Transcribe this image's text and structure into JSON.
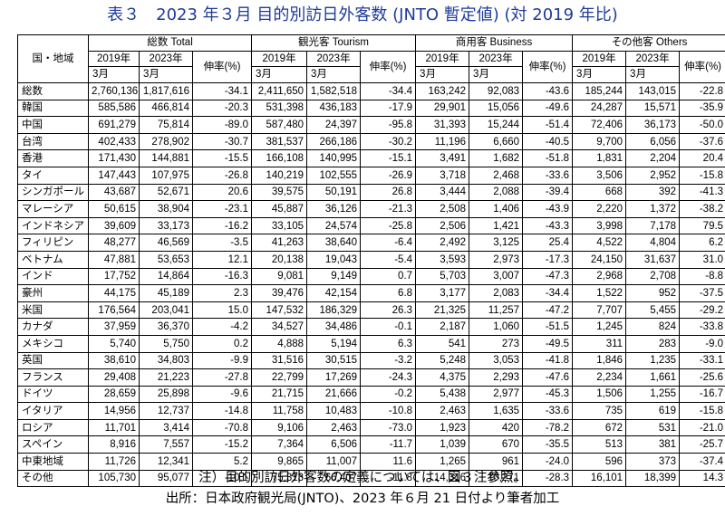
{
  "title": "表３　2023 年３月 目的別訪日外客数 (JNTO 暫定値) (対 2019 年比)",
  "header": {
    "country_label": "国・地域",
    "groups": [
      "総数 Total",
      "観光客 Tourism",
      "商用客 Business",
      "その他客 Others"
    ],
    "year_2019": "2019年",
    "year_2023": "2023年",
    "month": "3月",
    "growth": "伸率(%)"
  },
  "rows": [
    [
      "総数",
      "2,760,136",
      "1,817,616",
      "-34.1",
      "2,411,650",
      "1,582,518",
      "-34.4",
      "163,242",
      "92,083",
      "-43.6",
      "185,244",
      "143,015",
      "-22.8"
    ],
    [
      "韓国",
      "585,586",
      "466,814",
      "-20.3",
      "531,398",
      "436,183",
      "-17.9",
      "29,901",
      "15,056",
      "-49.6",
      "24,287",
      "15,571",
      "-35.9"
    ],
    [
      "中国",
      "691,279",
      "75,814",
      "-89.0",
      "587,480",
      "24,397",
      "-95.8",
      "31,393",
      "15,244",
      "-51.4",
      "72,406",
      "36,173",
      "-50.0"
    ],
    [
      "台湾",
      "402,433",
      "278,902",
      "-30.7",
      "381,537",
      "266,186",
      "-30.2",
      "11,196",
      "6,660",
      "-40.5",
      "9,700",
      "6,056",
      "-37.6"
    ],
    [
      "香港",
      "171,430",
      "144,881",
      "-15.5",
      "166,108",
      "140,995",
      "-15.1",
      "3,491",
      "1,682",
      "-51.8",
      "1,831",
      "2,204",
      "20.4"
    ],
    [
      "タイ",
      "147,443",
      "107,975",
      "-26.8",
      "140,219",
      "102,555",
      "-26.9",
      "3,718",
      "2,468",
      "-33.6",
      "3,506",
      "2,952",
      "-15.8"
    ],
    [
      "シンガポール",
      "43,687",
      "52,671",
      "20.6",
      "39,575",
      "50,191",
      "26.8",
      "3,444",
      "2,088",
      "-39.4",
      "668",
      "392",
      "-41.3"
    ],
    [
      "マレーシア",
      "50,615",
      "38,904",
      "-23.1",
      "45,887",
      "36,126",
      "-21.3",
      "2,508",
      "1,406",
      "-43.9",
      "2,220",
      "1,372",
      "-38.2"
    ],
    [
      "インドネシア",
      "39,609",
      "33,173",
      "-16.2",
      "33,105",
      "24,574",
      "-25.8",
      "2,506",
      "1,421",
      "-43.3",
      "3,998",
      "7,178",
      "79.5"
    ],
    [
      "フィリピン",
      "48,277",
      "46,569",
      "-3.5",
      "41,263",
      "38,640",
      "-6.4",
      "2,492",
      "3,125",
      "25.4",
      "4,522",
      "4,804",
      "6.2"
    ],
    [
      "ベトナム",
      "47,881",
      "53,653",
      "12.1",
      "20,138",
      "19,043",
      "-5.4",
      "3,593",
      "2,973",
      "-17.3",
      "24,150",
      "31,637",
      "31.0"
    ],
    [
      "インド",
      "17,752",
      "14,864",
      "-16.3",
      "9,081",
      "9,149",
      "0.7",
      "5,703",
      "3,007",
      "-47.3",
      "2,968",
      "2,708",
      "-8.8"
    ],
    [
      "豪州",
      "44,175",
      "45,189",
      "2.3",
      "39,476",
      "42,154",
      "6.8",
      "3,177",
      "2,083",
      "-34.4",
      "1,522",
      "952",
      "-37.5"
    ],
    [
      "米国",
      "176,564",
      "203,041",
      "15.0",
      "147,532",
      "186,329",
      "26.3",
      "21,325",
      "11,257",
      "-47.2",
      "7,707",
      "5,455",
      "-29.2"
    ],
    [
      "カナダ",
      "37,959",
      "36,370",
      "-4.2",
      "34,527",
      "34,486",
      "-0.1",
      "2,187",
      "1,060",
      "-51.5",
      "1,245",
      "824",
      "-33.8"
    ],
    [
      "メキシコ",
      "5,740",
      "5,750",
      "0.2",
      "4,888",
      "5,194",
      "6.3",
      "541",
      "273",
      "-49.5",
      "311",
      "283",
      "-9.0"
    ],
    [
      "英国",
      "38,610",
      "34,803",
      "-9.9",
      "31,516",
      "30,515",
      "-3.2",
      "5,248",
      "3,053",
      "-41.8",
      "1,846",
      "1,235",
      "-33.1"
    ],
    [
      "フランス",
      "29,408",
      "21,223",
      "-27.8",
      "22,799",
      "17,269",
      "-24.3",
      "4,375",
      "2,293",
      "-47.6",
      "2,234",
      "1,661",
      "-25.6"
    ],
    [
      "ドイツ",
      "28,659",
      "25,898",
      "-9.6",
      "21,715",
      "21,666",
      "-0.2",
      "5,438",
      "2,977",
      "-45.3",
      "1,506",
      "1,255",
      "-16.7"
    ],
    [
      "イタリア",
      "14,956",
      "12,737",
      "-14.8",
      "11,758",
      "10,483",
      "-10.8",
      "2,463",
      "1,635",
      "-33.6",
      "735",
      "619",
      "-15.8"
    ],
    [
      "ロシア",
      "11,701",
      "3,414",
      "-70.8",
      "9,106",
      "2,463",
      "-73.0",
      "1,923",
      "420",
      "-78.2",
      "672",
      "531",
      "-21.0"
    ],
    [
      "スペイン",
      "8,916",
      "7,557",
      "-15.2",
      "7,364",
      "6,506",
      "-11.7",
      "1,039",
      "670",
      "-35.5",
      "513",
      "381",
      "-25.7"
    ],
    [
      "中東地域",
      "11,726",
      "12,341",
      "5.2",
      "9,865",
      "11,007",
      "11.6",
      "1,265",
      "961",
      "-24.0",
      "596",
      "373",
      "-37.4"
    ],
    [
      "その他",
      "105,730",
      "95,077",
      "-10.1",
      "75,313",
      "66,407",
      "-11.8",
      "14,316",
      "10,271",
      "-28.3",
      "16,101",
      "18,399",
      "14.3"
    ]
  ],
  "footer": {
    "note": "注）目的別訪日外客数の定義については、図３注参照。",
    "source": "出所：日本政府観光局(JNTO)、2023 年６月 21 日付より筆者加工"
  }
}
